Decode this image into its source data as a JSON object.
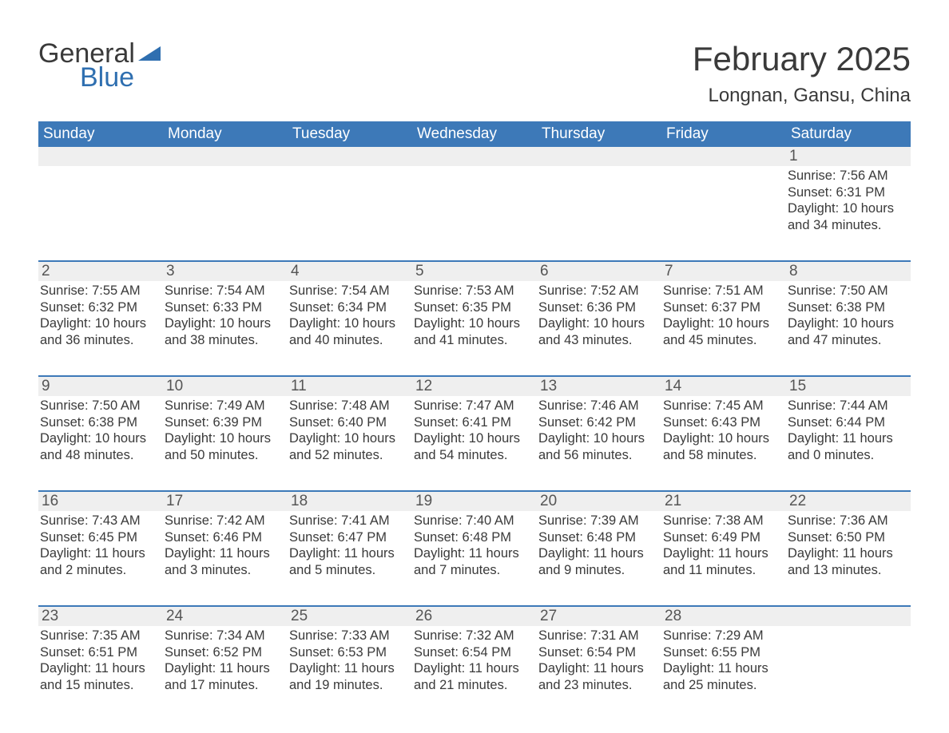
{
  "logo": {
    "general": "General",
    "blue": "Blue"
  },
  "title": "February 2025",
  "location": "Longnan, Gansu, China",
  "colors": {
    "header_bg": "#3d79b8",
    "header_text": "#ffffff",
    "daynum_bg": "#efefef",
    "divider": "#3d79b8",
    "body_text": "#3a3a3a",
    "accent": "#2f6fb0"
  },
  "daynames": [
    "Sunday",
    "Monday",
    "Tuesday",
    "Wednesday",
    "Thursday",
    "Friday",
    "Saturday"
  ],
  "weeks": [
    [
      null,
      null,
      null,
      null,
      null,
      null,
      {
        "n": "1",
        "sunrise": "7:56 AM",
        "sunset": "6:31 PM",
        "daylight": "10 hours and 34 minutes."
      }
    ],
    [
      {
        "n": "2",
        "sunrise": "7:55 AM",
        "sunset": "6:32 PM",
        "daylight": "10 hours and 36 minutes."
      },
      {
        "n": "3",
        "sunrise": "7:54 AM",
        "sunset": "6:33 PM",
        "daylight": "10 hours and 38 minutes."
      },
      {
        "n": "4",
        "sunrise": "7:54 AM",
        "sunset": "6:34 PM",
        "daylight": "10 hours and 40 minutes."
      },
      {
        "n": "5",
        "sunrise": "7:53 AM",
        "sunset": "6:35 PM",
        "daylight": "10 hours and 41 minutes."
      },
      {
        "n": "6",
        "sunrise": "7:52 AM",
        "sunset": "6:36 PM",
        "daylight": "10 hours and 43 minutes."
      },
      {
        "n": "7",
        "sunrise": "7:51 AM",
        "sunset": "6:37 PM",
        "daylight": "10 hours and 45 minutes."
      },
      {
        "n": "8",
        "sunrise": "7:50 AM",
        "sunset": "6:38 PM",
        "daylight": "10 hours and 47 minutes."
      }
    ],
    [
      {
        "n": "9",
        "sunrise": "7:50 AM",
        "sunset": "6:38 PM",
        "daylight": "10 hours and 48 minutes."
      },
      {
        "n": "10",
        "sunrise": "7:49 AM",
        "sunset": "6:39 PM",
        "daylight": "10 hours and 50 minutes."
      },
      {
        "n": "11",
        "sunrise": "7:48 AM",
        "sunset": "6:40 PM",
        "daylight": "10 hours and 52 minutes."
      },
      {
        "n": "12",
        "sunrise": "7:47 AM",
        "sunset": "6:41 PM",
        "daylight": "10 hours and 54 minutes."
      },
      {
        "n": "13",
        "sunrise": "7:46 AM",
        "sunset": "6:42 PM",
        "daylight": "10 hours and 56 minutes."
      },
      {
        "n": "14",
        "sunrise": "7:45 AM",
        "sunset": "6:43 PM",
        "daylight": "10 hours and 58 minutes."
      },
      {
        "n": "15",
        "sunrise": "7:44 AM",
        "sunset": "6:44 PM",
        "daylight": "11 hours and 0 minutes."
      }
    ],
    [
      {
        "n": "16",
        "sunrise": "7:43 AM",
        "sunset": "6:45 PM",
        "daylight": "11 hours and 2 minutes."
      },
      {
        "n": "17",
        "sunrise": "7:42 AM",
        "sunset": "6:46 PM",
        "daylight": "11 hours and 3 minutes."
      },
      {
        "n": "18",
        "sunrise": "7:41 AM",
        "sunset": "6:47 PM",
        "daylight": "11 hours and 5 minutes."
      },
      {
        "n": "19",
        "sunrise": "7:40 AM",
        "sunset": "6:48 PM",
        "daylight": "11 hours and 7 minutes."
      },
      {
        "n": "20",
        "sunrise": "7:39 AM",
        "sunset": "6:48 PM",
        "daylight": "11 hours and 9 minutes."
      },
      {
        "n": "21",
        "sunrise": "7:38 AM",
        "sunset": "6:49 PM",
        "daylight": "11 hours and 11 minutes."
      },
      {
        "n": "22",
        "sunrise": "7:36 AM",
        "sunset": "6:50 PM",
        "daylight": "11 hours and 13 minutes."
      }
    ],
    [
      {
        "n": "23",
        "sunrise": "7:35 AM",
        "sunset": "6:51 PM",
        "daylight": "11 hours and 15 minutes."
      },
      {
        "n": "24",
        "sunrise": "7:34 AM",
        "sunset": "6:52 PM",
        "daylight": "11 hours and 17 minutes."
      },
      {
        "n": "25",
        "sunrise": "7:33 AM",
        "sunset": "6:53 PM",
        "daylight": "11 hours and 19 minutes."
      },
      {
        "n": "26",
        "sunrise": "7:32 AM",
        "sunset": "6:54 PM",
        "daylight": "11 hours and 21 minutes."
      },
      {
        "n": "27",
        "sunrise": "7:31 AM",
        "sunset": "6:54 PM",
        "daylight": "11 hours and 23 minutes."
      },
      {
        "n": "28",
        "sunrise": "7:29 AM",
        "sunset": "6:55 PM",
        "daylight": "11 hours and 25 minutes."
      },
      null
    ]
  ],
  "labels": {
    "sunrise": "Sunrise: ",
    "sunset": "Sunset: ",
    "daylight": "Daylight: "
  }
}
